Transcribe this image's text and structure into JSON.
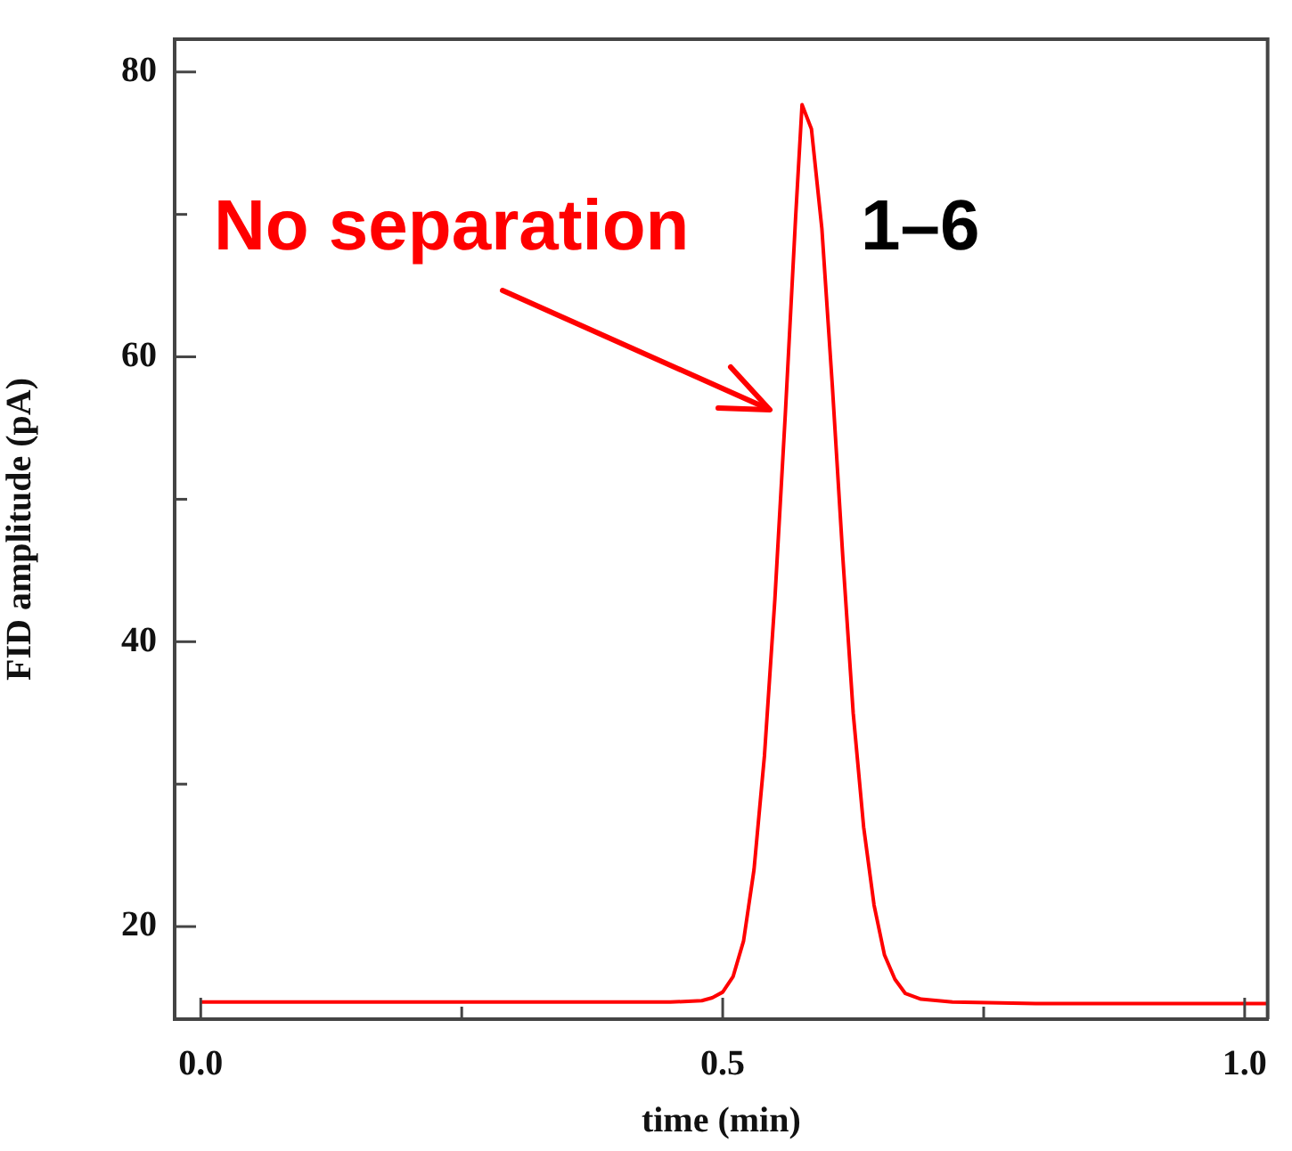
{
  "chart_data": {
    "type": "line",
    "xlabel": "time (min)",
    "ylabel": "FID amplitude (pA)",
    "xlim": [
      -0.025,
      1.022
    ],
    "ylim": [
      13.5,
      82.3
    ],
    "xticks": [
      {
        "value": 0,
        "label": "0.0"
      },
      {
        "value": 0.25,
        "label": null
      },
      {
        "value": 0.5,
        "label": "0.5"
      },
      {
        "value": 0.75,
        "label": null
      },
      {
        "value": 1,
        "label": "1.0"
      }
    ],
    "yticks": [
      20,
      {
        "value": 30,
        "label": null
      },
      40,
      {
        "value": 50,
        "label": null
      },
      60,
      {
        "value": 70,
        "label": null
      },
      80
    ],
    "grid": false,
    "legend": false,
    "marker": "none",
    "line_style": "solid",
    "annotations": [
      "No separation",
      "1–6"
    ],
    "series": [
      {
        "color": "#ff0000",
        "x": [
          0,
          0.1,
          0.2,
          0.3,
          0.4,
          0.45,
          0.48,
          0.49,
          0.5,
          0.51,
          0.52,
          0.53,
          0.54,
          0.55,
          0.56,
          0.57,
          0.576,
          0.585,
          0.595,
          0.605,
          0.615,
          0.625,
          0.635,
          0.645,
          0.655,
          0.665,
          0.675,
          0.69,
          0.72,
          0.8,
          0.9,
          1.022
        ],
        "values": [
          14.7,
          14.7,
          14.7,
          14.7,
          14.7,
          14.7,
          14.8,
          15,
          15.4,
          16.5,
          19,
          24,
          32,
          43,
          56,
          70,
          77.7,
          76,
          69,
          58,
          46,
          35,
          27,
          21.5,
          18,
          16.3,
          15.3,
          14.9,
          14.7,
          14.6,
          14.6,
          14.6
        ]
      }
    ]
  }
}
